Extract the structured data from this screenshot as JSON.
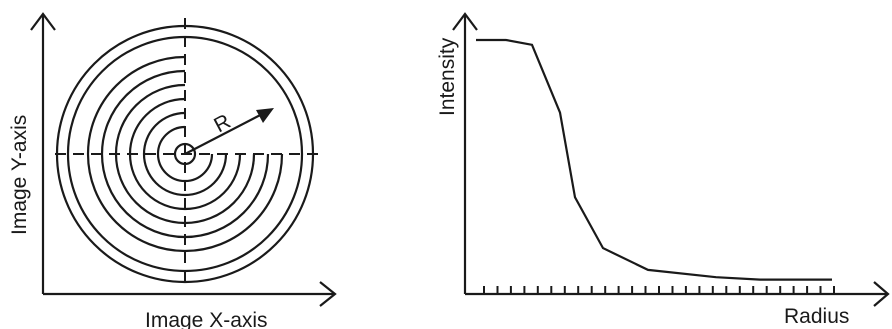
{
  "left_panel": {
    "x_axis_label": "Image X-axis",
    "y_axis_label": "Image Y-axis",
    "radius_label": "R"
  },
  "right_panel": {
    "x_axis_label": "Radius",
    "y_axis_label": "Intensity"
  },
  "chart_data": {
    "type": "line",
    "x": [
      0,
      1,
      2,
      3,
      4,
      5,
      6,
      7,
      8,
      9,
      10,
      11,
      12,
      13,
      14,
      15
    ],
    "y": [
      1.0,
      1.0,
      0.98,
      0.7,
      0.35,
      0.14,
      0.05,
      0.02,
      0.01,
      0.01,
      0.01,
      0.01,
      0.01,
      0.01,
      0.01,
      0.01
    ],
    "xlabel": "Radius",
    "ylabel": "Intensity",
    "grid": false,
    "ticks": 27
  }
}
